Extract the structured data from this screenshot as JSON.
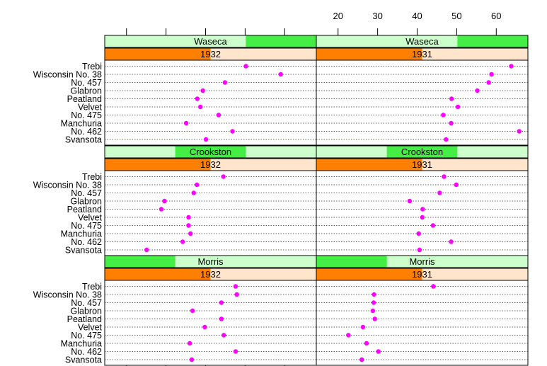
{
  "chart_data": {
    "type": "scatter",
    "x_ticks": [
      20,
      30,
      40,
      50,
      60
    ],
    "xlim": [
      14.5,
      68
    ],
    "categories": [
      "Trebi",
      "Wisconsin No. 38",
      "No. 457",
      "Glabron",
      "Peatland",
      "Velvet",
      "No. 475",
      "Manchuria",
      "No. 462",
      "Svansota"
    ],
    "years": [
      "1932",
      "1931"
    ],
    "sites": [
      "Waseca",
      "Crookston",
      "Morris"
    ],
    "panels": [
      {
        "site": "Waseca",
        "year": "1932",
        "values": [
          50.2,
          59.0,
          44.9,
          39.3,
          37.9,
          38.7,
          43.3,
          35.1,
          46.8,
          40.1
        ]
      },
      {
        "site": "Waseca",
        "year": "1931",
        "values": [
          63.8,
          58.8,
          58.1,
          55.2,
          48.7,
          50.3,
          46.6,
          48.6,
          65.8,
          47.3
        ]
      },
      {
        "site": "Crookston",
        "year": "1932",
        "values": [
          44.5,
          37.8,
          37.0,
          29.6,
          28.8,
          35.7,
          35.7,
          36.2,
          34.2,
          25.1
        ]
      },
      {
        "site": "Crookston",
        "year": "1931",
        "values": [
          46.8,
          49.9,
          45.7,
          38.1,
          41.4,
          41.3,
          44.0,
          40.4,
          48.6,
          40.6
        ]
      },
      {
        "site": "Morris",
        "year": "1932",
        "values": [
          47.6,
          47.9,
          44.0,
          36.7,
          44.0,
          39.8,
          44.6,
          36.0,
          47.6,
          36.5
        ]
      },
      {
        "site": "Morris",
        "year": "1931",
        "values": [
          44.1,
          29.1,
          29.0,
          28.8,
          29.3,
          26.3,
          22.6,
          27.2,
          30.2,
          26.0
        ]
      }
    ]
  },
  "colors": {
    "point": "#ff00ff",
    "site_strip_bg": "#ccffcc",
    "site_strip_marker": "#44ee44",
    "year_strip_bg": "#ffe5cc",
    "year_strip_marker": "#ff7f00",
    "grid": "#333333"
  }
}
